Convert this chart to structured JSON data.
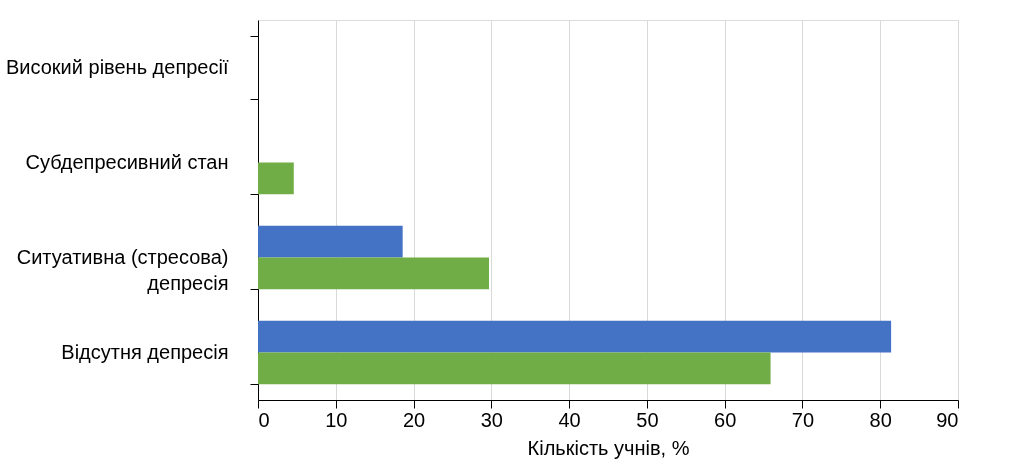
{
  "chart_data": {
    "type": "bar",
    "orientation": "horizontal",
    "xlabel": "Кількість учнів, %",
    "categories": [
      "Високий рівень депресії",
      "Субдепресивний стан",
      "Ситуативна (стресова) депресія",
      "Відсутня депресія"
    ],
    "series": [
      {
        "color": "#4472c4",
        "values": [
          null,
          null,
          18.6,
          81.4
        ]
      },
      {
        "color": "#70ad47",
        "values": [
          null,
          4.6,
          29.7,
          65.9
        ]
      }
    ],
    "xlim": [
      0,
      90
    ],
    "xticks": [
      0,
      10,
      20,
      30,
      40,
      50,
      60,
      70,
      80,
      90
    ],
    "grid": "x",
    "legend": false
  }
}
